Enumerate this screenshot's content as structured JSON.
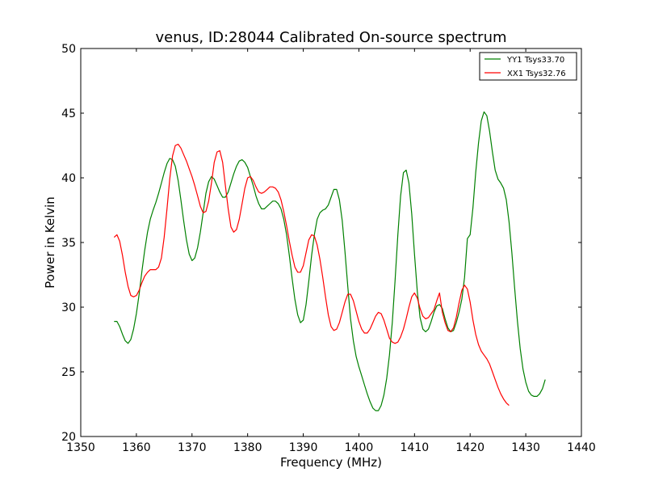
{
  "chart_data": {
    "type": "line",
    "title": "venus, ID:28044 Calibrated On-source spectrum",
    "xlabel": "Frequency (MHz)",
    "ylabel": "Power in Kelvin",
    "xlim": [
      1350,
      1440
    ],
    "ylim": [
      20,
      50
    ],
    "xticks": [
      1350,
      1360,
      1370,
      1380,
      1390,
      1400,
      1410,
      1420,
      1430,
      1440
    ],
    "yticks": [
      20,
      25,
      30,
      35,
      40,
      45,
      50
    ],
    "grid": false,
    "legend_position": "top-right",
    "series": [
      {
        "name": "YY1 Tsys33.70",
        "color": "#008000",
        "points": [
          [
            1356.0,
            28.9
          ],
          [
            1356.5,
            28.9
          ],
          [
            1357.0,
            28.5
          ],
          [
            1357.5,
            27.9
          ],
          [
            1358.0,
            27.4
          ],
          [
            1358.5,
            27.2
          ],
          [
            1359.0,
            27.5
          ],
          [
            1359.5,
            28.3
          ],
          [
            1360.0,
            29.5
          ],
          [
            1360.5,
            31.0
          ],
          [
            1361.0,
            32.8
          ],
          [
            1361.5,
            34.4
          ],
          [
            1362.0,
            35.8
          ],
          [
            1362.5,
            36.8
          ],
          [
            1363.0,
            37.5
          ],
          [
            1363.5,
            38.1
          ],
          [
            1364.0,
            38.8
          ],
          [
            1364.5,
            39.6
          ],
          [
            1365.0,
            40.4
          ],
          [
            1365.5,
            41.1
          ],
          [
            1366.0,
            41.5
          ],
          [
            1366.5,
            41.4
          ],
          [
            1367.0,
            40.9
          ],
          [
            1367.5,
            39.8
          ],
          [
            1368.0,
            38.3
          ],
          [
            1368.5,
            36.7
          ],
          [
            1369.0,
            35.2
          ],
          [
            1369.5,
            34.1
          ],
          [
            1370.0,
            33.6
          ],
          [
            1370.5,
            33.8
          ],
          [
            1371.0,
            34.6
          ],
          [
            1371.5,
            35.8
          ],
          [
            1372.0,
            37.3
          ],
          [
            1372.5,
            38.8
          ],
          [
            1373.0,
            39.7
          ],
          [
            1373.5,
            40.1
          ],
          [
            1374.0,
            39.9
          ],
          [
            1374.5,
            39.4
          ],
          [
            1375.0,
            38.9
          ],
          [
            1375.5,
            38.5
          ],
          [
            1376.0,
            38.5
          ],
          [
            1376.5,
            38.9
          ],
          [
            1377.0,
            39.6
          ],
          [
            1377.5,
            40.3
          ],
          [
            1378.0,
            40.9
          ],
          [
            1378.5,
            41.3
          ],
          [
            1379.0,
            41.4
          ],
          [
            1379.5,
            41.2
          ],
          [
            1380.0,
            40.8
          ],
          [
            1380.5,
            40.1
          ],
          [
            1381.0,
            39.4
          ],
          [
            1381.5,
            38.6
          ],
          [
            1382.0,
            38.0
          ],
          [
            1382.5,
            37.6
          ],
          [
            1383.0,
            37.6
          ],
          [
            1383.5,
            37.8
          ],
          [
            1384.0,
            38.0
          ],
          [
            1384.5,
            38.2
          ],
          [
            1385.0,
            38.2
          ],
          [
            1385.5,
            38.0
          ],
          [
            1386.0,
            37.6
          ],
          [
            1386.5,
            36.8
          ],
          [
            1387.0,
            35.6
          ],
          [
            1387.5,
            34.0
          ],
          [
            1388.0,
            32.2
          ],
          [
            1388.5,
            30.6
          ],
          [
            1389.0,
            29.4
          ],
          [
            1389.5,
            28.8
          ],
          [
            1390.0,
            29.0
          ],
          [
            1390.5,
            30.2
          ],
          [
            1391.0,
            32.0
          ],
          [
            1391.5,
            34.0
          ],
          [
            1392.0,
            35.6
          ],
          [
            1392.5,
            36.8
          ],
          [
            1393.0,
            37.3
          ],
          [
            1393.5,
            37.5
          ],
          [
            1394.0,
            37.6
          ],
          [
            1394.5,
            37.9
          ],
          [
            1395.0,
            38.5
          ],
          [
            1395.5,
            39.1
          ],
          [
            1396.0,
            39.1
          ],
          [
            1396.5,
            38.3
          ],
          [
            1397.0,
            36.7
          ],
          [
            1397.5,
            34.3
          ],
          [
            1398.0,
            31.6
          ],
          [
            1398.5,
            29.1
          ],
          [
            1399.0,
            27.4
          ],
          [
            1399.5,
            26.2
          ],
          [
            1400.0,
            25.4
          ],
          [
            1400.5,
            24.7
          ],
          [
            1401.0,
            24.0
          ],
          [
            1401.5,
            23.3
          ],
          [
            1402.0,
            22.7
          ],
          [
            1402.5,
            22.2
          ],
          [
            1403.0,
            22.0
          ],
          [
            1403.5,
            22.0
          ],
          [
            1404.0,
            22.4
          ],
          [
            1404.5,
            23.2
          ],
          [
            1405.0,
            24.5
          ],
          [
            1405.5,
            26.3
          ],
          [
            1406.0,
            28.8
          ],
          [
            1406.5,
            32.0
          ],
          [
            1407.0,
            35.6
          ],
          [
            1407.5,
            38.6
          ],
          [
            1408.0,
            40.4
          ],
          [
            1408.5,
            40.6
          ],
          [
            1409.0,
            39.6
          ],
          [
            1409.5,
            37.2
          ],
          [
            1410.0,
            34.1
          ],
          [
            1410.5,
            31.2
          ],
          [
            1411.0,
            29.2
          ],
          [
            1411.5,
            28.3
          ],
          [
            1412.0,
            28.1
          ],
          [
            1412.5,
            28.3
          ],
          [
            1413.0,
            28.9
          ],
          [
            1413.5,
            29.6
          ],
          [
            1414.0,
            30.1
          ],
          [
            1414.5,
            30.2
          ],
          [
            1415.0,
            29.9
          ],
          [
            1415.5,
            29.1
          ],
          [
            1416.0,
            28.4
          ],
          [
            1416.5,
            28.1
          ],
          [
            1417.0,
            28.2
          ],
          [
            1417.5,
            28.8
          ],
          [
            1418.0,
            29.6
          ],
          [
            1418.5,
            30.6
          ],
          [
            1419.0,
            32.3
          ],
          [
            1419.5,
            35.3
          ],
          [
            1420.0,
            35.6
          ],
          [
            1420.5,
            37.7
          ],
          [
            1421.0,
            40.4
          ],
          [
            1421.5,
            42.7
          ],
          [
            1422.0,
            44.4
          ],
          [
            1422.5,
            45.1
          ],
          [
            1423.0,
            44.8
          ],
          [
            1423.5,
            43.6
          ],
          [
            1424.0,
            42.0
          ],
          [
            1424.5,
            40.6
          ],
          [
            1425.0,
            39.9
          ],
          [
            1425.5,
            39.6
          ],
          [
            1426.0,
            39.2
          ],
          [
            1426.5,
            38.3
          ],
          [
            1427.0,
            36.6
          ],
          [
            1427.5,
            34.2
          ],
          [
            1428.0,
            31.5
          ],
          [
            1428.5,
            28.9
          ],
          [
            1429.0,
            26.8
          ],
          [
            1429.5,
            25.2
          ],
          [
            1430.0,
            24.2
          ],
          [
            1430.5,
            23.5
          ],
          [
            1431.0,
            23.2
          ],
          [
            1431.5,
            23.1
          ],
          [
            1432.0,
            23.1
          ],
          [
            1432.5,
            23.3
          ],
          [
            1433.0,
            23.7
          ],
          [
            1433.5,
            24.4
          ]
        ]
      },
      {
        "name": "XX1 Tsys32.76",
        "color": "#ff0000",
        "points": [
          [
            1356.0,
            35.4
          ],
          [
            1356.5,
            35.6
          ],
          [
            1357.0,
            35.1
          ],
          [
            1357.5,
            34.0
          ],
          [
            1358.0,
            32.7
          ],
          [
            1358.5,
            31.6
          ],
          [
            1359.0,
            30.9
          ],
          [
            1359.5,
            30.8
          ],
          [
            1360.0,
            30.9
          ],
          [
            1360.5,
            31.3
          ],
          [
            1361.0,
            31.9
          ],
          [
            1361.5,
            32.4
          ],
          [
            1362.0,
            32.7
          ],
          [
            1362.5,
            32.9
          ],
          [
            1363.0,
            32.9
          ],
          [
            1363.5,
            32.9
          ],
          [
            1364.0,
            33.1
          ],
          [
            1364.5,
            33.8
          ],
          [
            1365.0,
            35.4
          ],
          [
            1365.5,
            37.6
          ],
          [
            1366.0,
            39.9
          ],
          [
            1366.5,
            41.7
          ],
          [
            1367.0,
            42.5
          ],
          [
            1367.5,
            42.6
          ],
          [
            1368.0,
            42.3
          ],
          [
            1368.5,
            41.8
          ],
          [
            1369.0,
            41.3
          ],
          [
            1369.5,
            40.7
          ],
          [
            1370.0,
            40.1
          ],
          [
            1370.5,
            39.4
          ],
          [
            1371.0,
            38.6
          ],
          [
            1371.5,
            37.8
          ],
          [
            1372.0,
            37.3
          ],
          [
            1372.5,
            37.4
          ],
          [
            1373.0,
            38.2
          ],
          [
            1373.5,
            39.6
          ],
          [
            1374.0,
            41.2
          ],
          [
            1374.5,
            42.0
          ],
          [
            1375.0,
            42.1
          ],
          [
            1375.5,
            41.2
          ],
          [
            1376.0,
            39.4
          ],
          [
            1376.5,
            37.6
          ],
          [
            1377.0,
            36.2
          ],
          [
            1377.5,
            35.8
          ],
          [
            1378.0,
            36.0
          ],
          [
            1378.5,
            36.8
          ],
          [
            1379.0,
            38.0
          ],
          [
            1379.5,
            39.2
          ],
          [
            1380.0,
            40.0
          ],
          [
            1380.5,
            40.1
          ],
          [
            1381.0,
            39.8
          ],
          [
            1381.5,
            39.3
          ],
          [
            1382.0,
            38.9
          ],
          [
            1382.5,
            38.8
          ],
          [
            1383.0,
            38.9
          ],
          [
            1383.5,
            39.1
          ],
          [
            1384.0,
            39.3
          ],
          [
            1384.5,
            39.3
          ],
          [
            1385.0,
            39.2
          ],
          [
            1385.5,
            38.9
          ],
          [
            1386.0,
            38.3
          ],
          [
            1386.5,
            37.4
          ],
          [
            1387.0,
            36.3
          ],
          [
            1387.5,
            35.1
          ],
          [
            1388.0,
            34.0
          ],
          [
            1388.5,
            33.1
          ],
          [
            1389.0,
            32.7
          ],
          [
            1389.5,
            32.7
          ],
          [
            1390.0,
            33.2
          ],
          [
            1390.5,
            34.2
          ],
          [
            1391.0,
            35.2
          ],
          [
            1391.5,
            35.6
          ],
          [
            1392.0,
            35.5
          ],
          [
            1392.5,
            34.8
          ],
          [
            1393.0,
            33.7
          ],
          [
            1393.5,
            32.3
          ],
          [
            1394.0,
            30.8
          ],
          [
            1394.5,
            29.4
          ],
          [
            1395.0,
            28.5
          ],
          [
            1395.5,
            28.2
          ],
          [
            1396.0,
            28.3
          ],
          [
            1396.5,
            28.8
          ],
          [
            1397.0,
            29.6
          ],
          [
            1397.5,
            30.4
          ],
          [
            1398.0,
            31.0
          ],
          [
            1398.5,
            31.0
          ],
          [
            1399.0,
            30.5
          ],
          [
            1399.5,
            29.7
          ],
          [
            1400.0,
            28.9
          ],
          [
            1400.5,
            28.3
          ],
          [
            1401.0,
            28.0
          ],
          [
            1401.5,
            28.0
          ],
          [
            1402.0,
            28.3
          ],
          [
            1402.5,
            28.8
          ],
          [
            1403.0,
            29.3
          ],
          [
            1403.5,
            29.6
          ],
          [
            1404.0,
            29.5
          ],
          [
            1404.5,
            29.0
          ],
          [
            1405.0,
            28.3
          ],
          [
            1405.5,
            27.6
          ],
          [
            1406.0,
            27.3
          ],
          [
            1406.5,
            27.2
          ],
          [
            1407.0,
            27.3
          ],
          [
            1407.5,
            27.7
          ],
          [
            1408.0,
            28.3
          ],
          [
            1408.5,
            29.1
          ],
          [
            1409.0,
            30.0
          ],
          [
            1409.5,
            30.8
          ],
          [
            1410.0,
            31.1
          ],
          [
            1410.5,
            30.7
          ],
          [
            1411.0,
            29.9
          ],
          [
            1411.5,
            29.3
          ],
          [
            1412.0,
            29.1
          ],
          [
            1412.5,
            29.2
          ],
          [
            1413.0,
            29.5
          ],
          [
            1413.5,
            29.8
          ],
          [
            1414.0,
            30.5
          ],
          [
            1414.5,
            31.1
          ],
          [
            1415.0,
            29.6
          ],
          [
            1415.5,
            28.8
          ],
          [
            1416.0,
            28.2
          ],
          [
            1416.5,
            28.1
          ],
          [
            1417.0,
            28.4
          ],
          [
            1417.5,
            29.2
          ],
          [
            1418.0,
            30.3
          ],
          [
            1418.5,
            31.3
          ],
          [
            1419.0,
            31.7
          ],
          [
            1419.5,
            31.4
          ],
          [
            1420.0,
            30.4
          ],
          [
            1420.5,
            29.0
          ],
          [
            1421.0,
            27.9
          ],
          [
            1421.5,
            27.1
          ],
          [
            1422.0,
            26.6
          ],
          [
            1422.5,
            26.3
          ],
          [
            1423.0,
            26.0
          ],
          [
            1423.5,
            25.6
          ],
          [
            1424.0,
            25.0
          ],
          [
            1424.5,
            24.4
          ],
          [
            1425.0,
            23.8
          ],
          [
            1425.5,
            23.3
          ],
          [
            1426.0,
            22.9
          ],
          [
            1426.5,
            22.6
          ],
          [
            1427.0,
            22.4
          ]
        ]
      }
    ]
  }
}
